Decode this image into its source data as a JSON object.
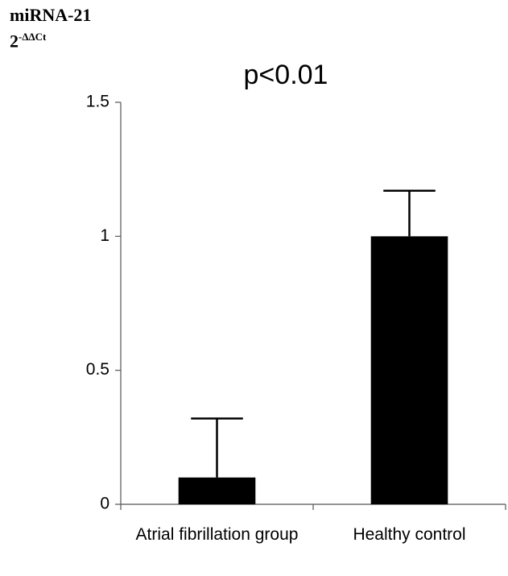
{
  "chart_data": {
    "type": "bar",
    "title": "p<0.01",
    "ylabel": "miRNA-21",
    "ylabel_unit": {
      "base": "2",
      "exponent": "-ΔΔCt"
    },
    "categories": [
      "Atrial fibrillation group",
      "Healthy control"
    ],
    "values": [
      0.1,
      1
    ],
    "errors": [
      0.22,
      0.17
    ],
    "color": "#000000",
    "ylim": [
      0,
      1.5
    ],
    "yticks": [
      0,
      0.5,
      1,
      1.5
    ]
  }
}
